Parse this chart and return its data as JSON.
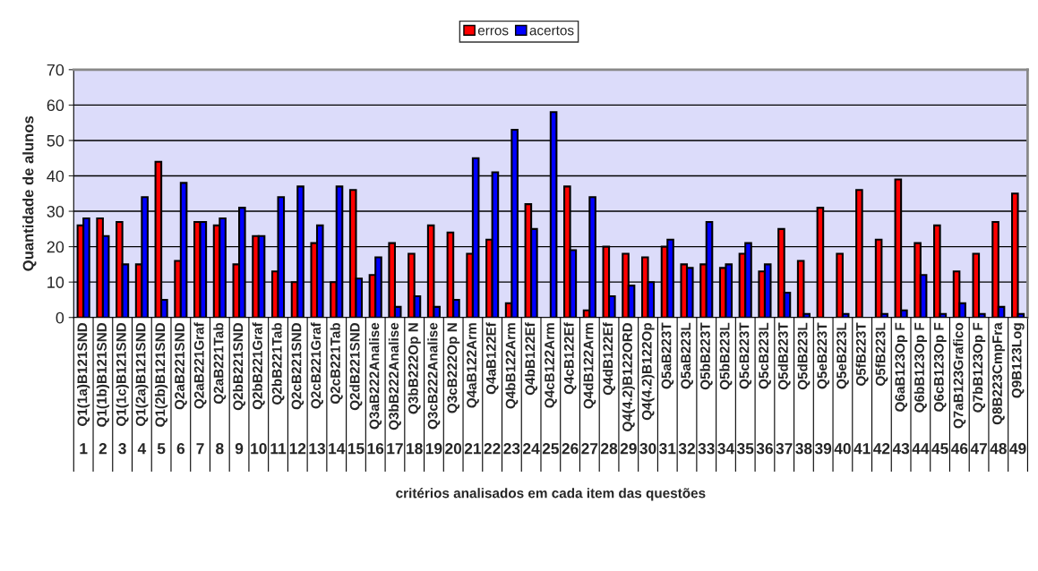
{
  "chart_data": {
    "type": "bar",
    "xlabel": "critérios analisados em cada item das questões",
    "ylabel": "Quantidade de alunos",
    "categories": [
      "Q1(1a)B121SND",
      "Q1(1b)B121SND",
      "Q1(1c)B121SND",
      "Q1(2a)B121SND",
      "Q1(2b)B121SND",
      "Q2aB221SND",
      "Q2aB221Graf",
      "Q2aB221Tab",
      "Q2bB221SND",
      "Q2bB221Graf",
      "Q2bB221Tab",
      "Q2cB221SND",
      "Q2cB221Graf",
      "Q2cB221Tab",
      "Q2dB221SND",
      "Q3aB222Analise",
      "Q3bB222Analise",
      "Q3bB222Op N",
      "Q3cB222Analise",
      "Q3cB222Op N",
      "Q4aB122Arm",
      "Q4aB122Ef",
      "Q4bB122Arm",
      "Q4bB122Ef",
      "Q4cB122Arm",
      "Q4cB122Ef",
      "Q4dB122Arm",
      "Q4dB122Ef",
      "Q4(4.2)B122ORD",
      "Q4(4.2)B122Op",
      "Q5aB223T",
      "Q5aB223L",
      "Q5bB223T",
      "Q5bB223L",
      "Q5cB223T",
      "Q5cB223L",
      "Q5dB223T",
      "Q5dB223L",
      "Q5eB223T",
      "Q5eB223L",
      "Q5fB223T",
      "Q5fB223L",
      "Q6aB123Op F",
      "Q6bB123Op F",
      "Q6cB123Op F",
      "Q7aB123Grafico",
      "Q7bB123Op F",
      "Q8B223CmpFra",
      "Q9B123Log"
    ],
    "x2lim": [
      0.5,
      49.5
    ],
    "x2ticks": [
      1,
      2,
      3,
      4,
      5,
      6,
      7,
      8,
      9,
      10,
      11,
      12,
      13,
      14,
      15,
      16,
      17,
      18,
      19,
      20,
      21,
      22,
      23,
      24,
      25,
      26,
      27,
      28,
      29,
      30,
      31,
      32,
      33,
      34,
      35,
      36,
      37,
      38,
      39,
      40,
      41,
      42,
      43,
      44,
      45,
      46,
      47,
      48,
      49
    ],
    "series": [
      {
        "name": "erros",
        "color": "#ff0000",
        "values": [
          26,
          28,
          27,
          15,
          44,
          16,
          27,
          26,
          15,
          23,
          13,
          10,
          21,
          10,
          36,
          12,
          21,
          18,
          26,
          24,
          18,
          22,
          4,
          32,
          0,
          37,
          2,
          20,
          18,
          17,
          20,
          15,
          15,
          14,
          18,
          13,
          25,
          16,
          31,
          18,
          36,
          22,
          39,
          21,
          26,
          13,
          18,
          27,
          35
        ]
      },
      {
        "name": "acertos",
        "color": "#0000ff",
        "values": [
          28,
          23,
          15,
          34,
          5,
          38,
          27,
          28,
          31,
          23,
          34,
          37,
          26,
          37,
          11,
          17,
          3,
          6,
          3,
          5,
          45,
          41,
          53,
          25,
          58,
          19,
          34,
          6,
          9,
          10,
          22,
          14,
          27,
          15,
          21,
          15,
          7,
          1,
          0,
          1,
          0,
          1,
          2,
          12,
          1,
          4,
          1,
          3,
          1
        ]
      }
    ],
    "ylim": [
      0,
      70
    ],
    "yticks": [
      0,
      10,
      20,
      30,
      40,
      50,
      60,
      70
    ],
    "grid": "y",
    "legend": "top"
  }
}
